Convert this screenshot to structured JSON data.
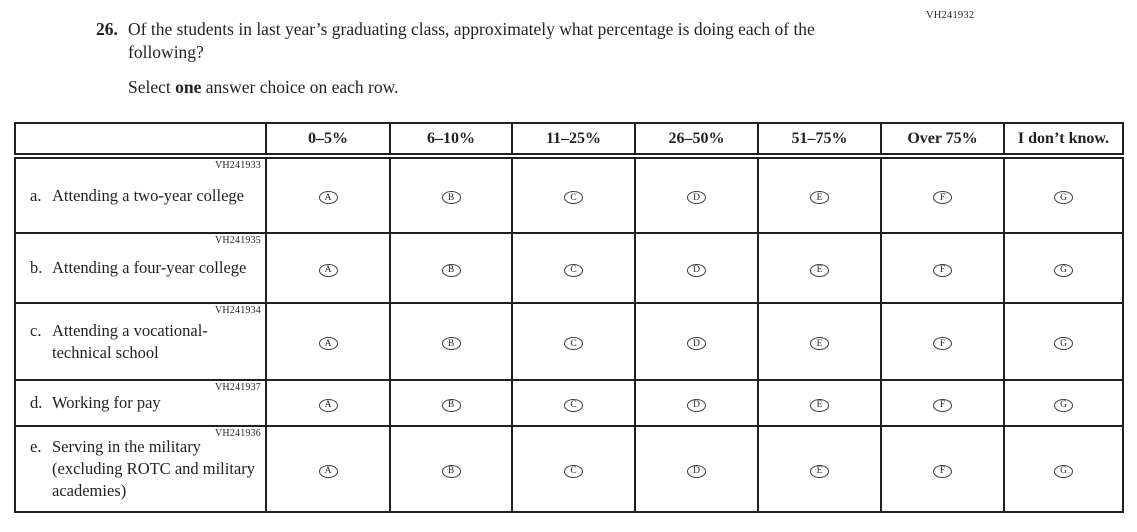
{
  "page_code": "VH241932",
  "question": {
    "number": "26.",
    "text": "Of the students in last year’s graduating class, approximately what percentage is doing each of the following?",
    "select_prefix": "Select ",
    "select_bold": "one",
    "select_suffix": " answer choice on each row."
  },
  "table": {
    "column_headers": [
      "0–5%",
      "6–10%",
      "11–25%",
      "26–50%",
      "51–75%",
      "Over 75%",
      "I don’t know."
    ],
    "option_letters": [
      "A",
      "B",
      "C",
      "D",
      "E",
      "F",
      "G"
    ],
    "rows": [
      {
        "code": "VH241933",
        "letter": "a.",
        "label": "Attending a two-year college"
      },
      {
        "code": "VH241935",
        "letter": "b.",
        "label": "Attending a four-year college"
      },
      {
        "code": "VH241934",
        "letter": "c.",
        "label": "Attending a vocational-technical school"
      },
      {
        "code": "VH241937",
        "letter": "d.",
        "label": "Working for pay"
      },
      {
        "code": "VH241936",
        "letter": "e.",
        "label": "Serving in the military (excluding ROTC and military academies)"
      }
    ]
  },
  "colors": {
    "text": "#231f20",
    "border": "#231f20",
    "background": "#ffffff"
  }
}
